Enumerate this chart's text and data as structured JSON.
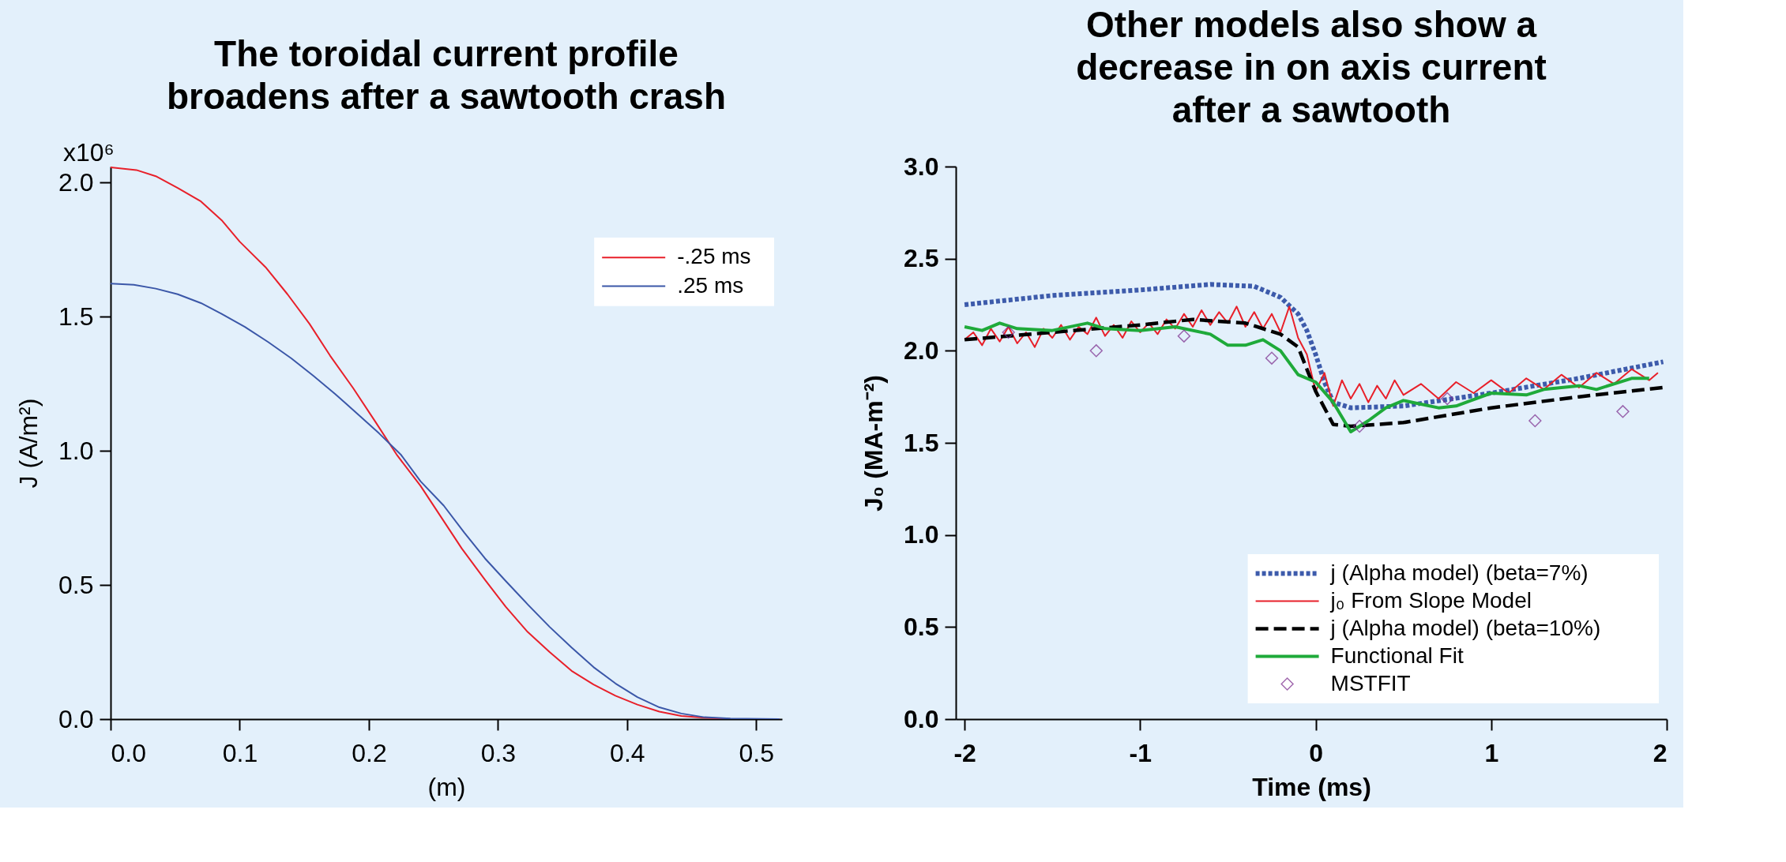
{
  "chart_data": [
    {
      "type": "line",
      "title": "The toroidal current profile broadens after a sawtooth crash",
      "xlabel": "(m)",
      "ylabel": "J  (A/m²)",
      "xlim": [
        0,
        0.52
      ],
      "ylim": [
        0,
        2.06
      ],
      "xticks": [
        {
          "value": 0,
          "label": "0.0"
        },
        0.1,
        0.2,
        0.3,
        0.4,
        0.5
      ],
      "yticks": [
        {
          "value": 0,
          "label": "0.0"
        },
        0.5,
        {
          "value": 1,
          "label": "1.0"
        },
        1.5,
        {
          "value": 2,
          "label": "2.0"
        }
      ],
      "annotations": [
        "x10⁶"
      ],
      "grid": false,
      "legend": "top right",
      "marker": "none",
      "line_style": "solid",
      "series": [
        {
          "name": "-.25 ms",
          "color": "#e8202a",
          "x": [
            0,
            0.02,
            0.035,
            0.052,
            0.07,
            0.086,
            0.1,
            0.12,
            0.137,
            0.154,
            0.17,
            0.188,
            0.205,
            0.222,
            0.24,
            0.256,
            0.272,
            0.29,
            0.306,
            0.323,
            0.34,
            0.357,
            0.374,
            0.391,
            0.408,
            0.425,
            0.442,
            0.46,
            0.48,
            0.518
          ],
          "values": [
            2.057,
            2.047,
            2.024,
            1.98,
            1.93,
            1.86,
            1.78,
            1.685,
            1.584,
            1.474,
            1.355,
            1.233,
            1.109,
            0.983,
            0.87,
            0.753,
            0.636,
            0.519,
            0.419,
            0.325,
            0.25,
            0.18,
            0.129,
            0.087,
            0.054,
            0.028,
            0.012,
            0.005,
            0.001,
            0
          ]
        },
        {
          "name": ".25 ms",
          "color": "#3b57a8",
          "x": [
            0,
            0.018,
            0.035,
            0.052,
            0.07,
            0.086,
            0.104,
            0.122,
            0.14,
            0.157,
            0.174,
            0.191,
            0.208,
            0.225,
            0.24,
            0.258,
            0.274,
            0.29,
            0.306,
            0.323,
            0.34,
            0.357,
            0.374,
            0.391,
            0.408,
            0.425,
            0.442,
            0.46,
            0.48,
            0.518
          ],
          "values": [
            1.624,
            1.619,
            1.605,
            1.584,
            1.551,
            1.511,
            1.462,
            1.406,
            1.345,
            1.28,
            1.212,
            1.139,
            1.065,
            0.985,
            0.887,
            0.796,
            0.695,
            0.599,
            0.515,
            0.428,
            0.344,
            0.267,
            0.194,
            0.133,
            0.082,
            0.044,
            0.021,
            0.007,
            0.002,
            0
          ]
        }
      ]
    },
    {
      "type": "line",
      "title": "Other models also show a decrease in on axis current after a sawtooth",
      "xlabel": "Time (ms)",
      "ylabel": "J₀ (MA-m⁻²)",
      "xlim": [
        -2.05,
        2.0
      ],
      "ylim": [
        0,
        3
      ],
      "xticks": [
        -2,
        -1,
        0,
        1,
        2
      ],
      "yticks": [
        {
          "value": 0,
          "label": "0.0"
        },
        0.5,
        {
          "value": 1,
          "label": "1.0"
        },
        1.5,
        {
          "value": 2,
          "label": "2.0"
        },
        2.5,
        {
          "value": 3,
          "label": "3.0"
        }
      ],
      "grid": false,
      "legend": "bottom right",
      "series": [
        {
          "name": "j (Alpha model) (beta=7%)",
          "color": "#3d5bab",
          "line_style": "dotted",
          "x": [
            -2,
            -1.5,
            -1,
            -0.6,
            -0.35,
            -0.2,
            -0.1,
            -0.05,
            0,
            0.05,
            0.1,
            0.2,
            0.5,
            1,
            1.5,
            1.98
          ],
          "values": [
            2.25,
            2.3,
            2.33,
            2.36,
            2.35,
            2.29,
            2.2,
            2.11,
            1.98,
            1.83,
            1.72,
            1.69,
            1.7,
            1.77,
            1.85,
            1.94
          ]
        },
        {
          "name": "j₀  From Slope Model",
          "color": "#e8202a",
          "line_style": "solid",
          "x": [
            -2,
            -1.95,
            -1.9,
            -1.85,
            -1.8,
            -1.75,
            -1.7,
            -1.65,
            -1.6,
            -1.55,
            -1.5,
            -1.45,
            -1.4,
            -1.35,
            -1.3,
            -1.25,
            -1.2,
            -1.15,
            -1.1,
            -1.05,
            -1.0,
            -0.95,
            -0.9,
            -0.85,
            -0.8,
            -0.75,
            -0.7,
            -0.65,
            -0.6,
            -0.55,
            -0.5,
            -0.45,
            -0.4,
            -0.35,
            -0.3,
            -0.25,
            -0.2,
            -0.15,
            -0.1,
            -0.05,
            0,
            0.05,
            0.1,
            0.15,
            0.2,
            0.25,
            0.3,
            0.35,
            0.4,
            0.45,
            0.5,
            0.6,
            0.7,
            0.8,
            0.9,
            1.0,
            1.1,
            1.2,
            1.3,
            1.4,
            1.5,
            1.6,
            1.7,
            1.8,
            1.9,
            1.95
          ],
          "values": [
            2.06,
            2.1,
            2.03,
            2.12,
            2.05,
            2.13,
            2.04,
            2.1,
            2.02,
            2.12,
            2.07,
            2.14,
            2.06,
            2.13,
            2.09,
            2.18,
            2.08,
            2.14,
            2.07,
            2.16,
            2.1,
            2.15,
            2.09,
            2.17,
            2.12,
            2.2,
            2.13,
            2.22,
            2.14,
            2.21,
            2.15,
            2.24,
            2.13,
            2.21,
            2.12,
            2.2,
            2.1,
            2.24,
            2.07,
            1.98,
            1.78,
            1.88,
            1.7,
            1.84,
            1.74,
            1.82,
            1.72,
            1.81,
            1.74,
            1.84,
            1.76,
            1.82,
            1.74,
            1.83,
            1.77,
            1.84,
            1.77,
            1.85,
            1.79,
            1.87,
            1.8,
            1.88,
            1.82,
            1.9,
            1.84,
            1.88
          ]
        },
        {
          "name": "j (Alpha model) (beta=10%)",
          "color": "#000000",
          "line_style": "dashed",
          "x": [
            -2,
            -1.5,
            -1,
            -0.7,
            -0.4,
            -0.2,
            -0.1,
            0,
            0.1,
            0.2,
            0.5,
            1,
            1.5,
            1.98
          ],
          "values": [
            2.06,
            2.1,
            2.14,
            2.17,
            2.15,
            2.09,
            2.02,
            1.78,
            1.6,
            1.59,
            1.61,
            1.69,
            1.75,
            1.8
          ]
        },
        {
          "name": "Functional Fit",
          "color": "#1faa3a",
          "line_style": "solid",
          "x": [
            -2,
            -1.9,
            -1.8,
            -1.7,
            -1.5,
            -1.3,
            -1.2,
            -1,
            -0.8,
            -0.6,
            -0.5,
            -0.4,
            -0.3,
            -0.2,
            -0.1,
            0,
            0.1,
            0.2,
            0.3,
            0.4,
            0.5,
            0.6,
            0.7,
            0.8,
            1,
            1.2,
            1.3,
            1.5,
            1.6,
            1.8,
            1.9
          ],
          "values": [
            2.13,
            2.11,
            2.15,
            2.12,
            2.11,
            2.15,
            2.12,
            2.11,
            2.13,
            2.09,
            2.03,
            2.03,
            2.06,
            2.0,
            1.87,
            1.83,
            1.72,
            1.56,
            1.62,
            1.69,
            1.73,
            1.71,
            1.69,
            1.7,
            1.77,
            1.76,
            1.79,
            1.81,
            1.79,
            1.85,
            1.85
          ]
        },
        {
          "name": "MSTFIT",
          "type": "scatter",
          "marker": "diamond",
          "color": "#7a2a8c",
          "x": [
            -1.75,
            -1.25,
            -0.75,
            -0.25,
            0.25,
            0.75,
            1.25,
            1.75
          ],
          "values": [
            2.1,
            2.0,
            2.08,
            1.96,
            1.59,
            1.74,
            1.62,
            1.67
          ]
        }
      ]
    }
  ]
}
